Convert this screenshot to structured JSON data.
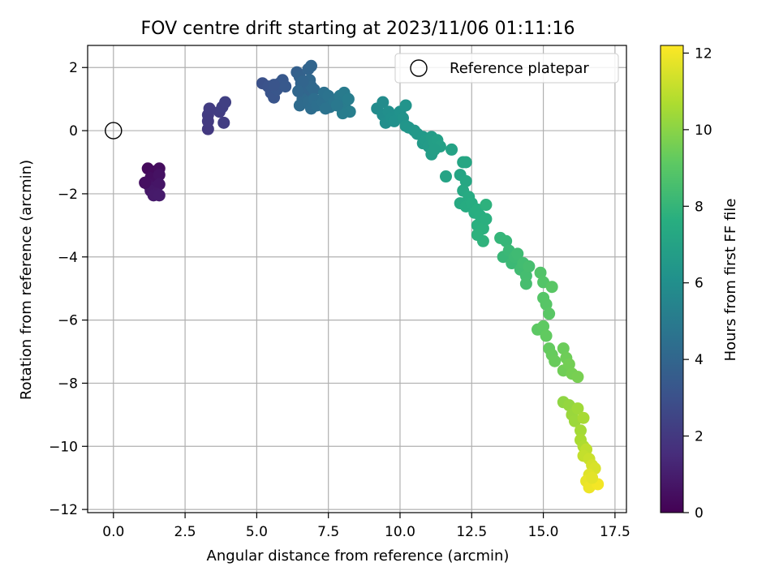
{
  "chart_data": {
    "type": "scatter",
    "title": "FOV centre drift starting at 2023/11/06 01:11:16",
    "xlabel": "Angular distance from reference (arcmin)",
    "ylabel": "Rotation from reference (arcmin)",
    "xlim": [
      -0.9,
      17.9
    ],
    "ylim": [
      -12.1,
      2.7
    ],
    "xticks": [
      0.0,
      2.5,
      5.0,
      7.5,
      10.0,
      12.5,
      15.0,
      17.5
    ],
    "xtick_labels": [
      "0.0",
      "2.5",
      "5.0",
      "7.5",
      "10.0",
      "12.5",
      "15.0",
      "17.5"
    ],
    "yticks": [
      2,
      0,
      -2,
      -4,
      -6,
      -8,
      -10,
      -12
    ],
    "ytick_labels": [
      "2",
      "0",
      "−2",
      "−4",
      "−6",
      "−8",
      "−10",
      "−12"
    ],
    "grid": true,
    "legend": {
      "position": "top-right",
      "entries": [
        "Reference platepar"
      ]
    },
    "reference_point": {
      "x": 0.0,
      "y": 0.0,
      "label": "Reference platepar"
    },
    "colorbar": {
      "label": "Hours from first FF file",
      "colormap": "viridis",
      "range": [
        0,
        12.2
      ],
      "ticks": [
        0,
        2,
        4,
        6,
        8,
        10,
        12
      ],
      "tick_labels": [
        "0",
        "2",
        "4",
        "6",
        "8",
        "10",
        "12"
      ]
    },
    "points": [
      {
        "x": 1.2,
        "y": -1.2,
        "h": 0.3
      },
      {
        "x": 1.4,
        "y": -1.3,
        "h": 0.35
      },
      {
        "x": 1.6,
        "y": -1.2,
        "h": 0.4
      },
      {
        "x": 1.3,
        "y": -1.5,
        "h": 0.45
      },
      {
        "x": 1.5,
        "y": -1.6,
        "h": 0.5
      },
      {
        "x": 1.2,
        "y": -1.7,
        "h": 0.55
      },
      {
        "x": 1.6,
        "y": -1.4,
        "h": 0.6
      },
      {
        "x": 1.4,
        "y": -1.8,
        "h": 0.65
      },
      {
        "x": 1.6,
        "y": -1.7,
        "h": 0.7
      },
      {
        "x": 1.3,
        "y": -1.9,
        "h": 0.75
      },
      {
        "x": 1.5,
        "y": -2.0,
        "h": 0.8
      },
      {
        "x": 1.4,
        "y": -2.05,
        "h": 0.85
      },
      {
        "x": 1.6,
        "y": -2.05,
        "h": 0.9
      },
      {
        "x": 1.1,
        "y": -1.65,
        "h": 0.5
      },
      {
        "x": 3.3,
        "y": 0.05,
        "h": 2.0
      },
      {
        "x": 3.3,
        "y": 0.3,
        "h": 2.05
      },
      {
        "x": 3.3,
        "y": 0.5,
        "h": 2.1
      },
      {
        "x": 3.35,
        "y": 0.7,
        "h": 2.15
      },
      {
        "x": 3.7,
        "y": 0.6,
        "h": 2.2
      },
      {
        "x": 3.8,
        "y": 0.75,
        "h": 2.25
      },
      {
        "x": 3.9,
        "y": 0.9,
        "h": 2.3
      },
      {
        "x": 3.85,
        "y": 0.25,
        "h": 2.2
      },
      {
        "x": 5.2,
        "y": 1.5,
        "h": 3.0
      },
      {
        "x": 5.4,
        "y": 1.4,
        "h": 3.1
      },
      {
        "x": 5.5,
        "y": 1.2,
        "h": 3.15
      },
      {
        "x": 5.6,
        "y": 1.05,
        "h": 3.2
      },
      {
        "x": 5.7,
        "y": 1.3,
        "h": 3.25
      },
      {
        "x": 5.8,
        "y": 1.5,
        "h": 3.3
      },
      {
        "x": 5.9,
        "y": 1.6,
        "h": 3.35
      },
      {
        "x": 6.0,
        "y": 1.4,
        "h": 3.4
      },
      {
        "x": 5.6,
        "y": 1.45,
        "h": 3.2
      },
      {
        "x": 6.4,
        "y": 1.85,
        "h": 3.7
      },
      {
        "x": 6.5,
        "y": 1.7,
        "h": 3.8
      },
      {
        "x": 6.55,
        "y": 1.5,
        "h": 3.85
      },
      {
        "x": 6.6,
        "y": 1.3,
        "h": 3.9
      },
      {
        "x": 6.7,
        "y": 1.2,
        "h": 4.0
      },
      {
        "x": 6.8,
        "y": 1.95,
        "h": 3.9
      },
      {
        "x": 6.9,
        "y": 2.05,
        "h": 3.95
      },
      {
        "x": 6.85,
        "y": 1.6,
        "h": 4.05
      },
      {
        "x": 6.9,
        "y": 1.4,
        "h": 4.1
      },
      {
        "x": 7.0,
        "y": 1.3,
        "h": 4.15
      },
      {
        "x": 6.6,
        "y": 1.0,
        "h": 4.2
      },
      {
        "x": 6.5,
        "y": 0.8,
        "h": 4.25
      },
      {
        "x": 6.8,
        "y": 0.9,
        "h": 4.3
      },
      {
        "x": 6.9,
        "y": 0.7,
        "h": 4.35
      },
      {
        "x": 7.0,
        "y": 1.0,
        "h": 4.4
      },
      {
        "x": 7.1,
        "y": 0.8,
        "h": 4.45
      },
      {
        "x": 7.3,
        "y": 0.9,
        "h": 4.5
      },
      {
        "x": 7.35,
        "y": 1.2,
        "h": 4.55
      },
      {
        "x": 7.5,
        "y": 1.1,
        "h": 4.6
      },
      {
        "x": 7.55,
        "y": 0.75,
        "h": 4.65
      },
      {
        "x": 7.7,
        "y": 0.9,
        "h": 4.7
      },
      {
        "x": 7.4,
        "y": 0.7,
        "h": 4.6
      },
      {
        "x": 6.6,
        "y": 1.55,
        "h": 3.95
      },
      {
        "x": 6.45,
        "y": 1.25,
        "h": 4.05
      },
      {
        "x": 7.9,
        "y": 1.1,
        "h": 4.9
      },
      {
        "x": 8.0,
        "y": 0.9,
        "h": 4.95
      },
      {
        "x": 8.05,
        "y": 1.2,
        "h": 5.0
      },
      {
        "x": 8.1,
        "y": 0.7,
        "h": 5.05
      },
      {
        "x": 8.2,
        "y": 1.0,
        "h": 5.1
      },
      {
        "x": 8.25,
        "y": 0.6,
        "h": 5.15
      },
      {
        "x": 8.0,
        "y": 0.55,
        "h": 5.1
      },
      {
        "x": 7.8,
        "y": 0.8,
        "h": 4.85
      },
      {
        "x": 9.2,
        "y": 0.7,
        "h": 5.8
      },
      {
        "x": 9.4,
        "y": 0.9,
        "h": 5.85
      },
      {
        "x": 9.4,
        "y": 0.5,
        "h": 5.9
      },
      {
        "x": 9.5,
        "y": 0.25,
        "h": 5.95
      },
      {
        "x": 9.6,
        "y": 0.6,
        "h": 6.0
      },
      {
        "x": 9.7,
        "y": 0.4,
        "h": 6.05
      },
      {
        "x": 9.8,
        "y": 0.3,
        "h": 6.1
      },
      {
        "x": 10.0,
        "y": 0.6,
        "h": 6.15
      },
      {
        "x": 10.1,
        "y": 0.4,
        "h": 6.2
      },
      {
        "x": 10.2,
        "y": 0.8,
        "h": 6.25
      },
      {
        "x": 10.2,
        "y": 0.15,
        "h": 6.3
      },
      {
        "x": 10.3,
        "y": 0.1,
        "h": 6.35
      },
      {
        "x": 10.5,
        "y": 0.0,
        "h": 6.4
      },
      {
        "x": 10.6,
        "y": -0.1,
        "h": 6.45
      },
      {
        "x": 10.8,
        "y": -0.2,
        "h": 6.5
      },
      {
        "x": 10.8,
        "y": -0.4,
        "h": 6.55
      },
      {
        "x": 10.9,
        "y": -0.3,
        "h": 6.6
      },
      {
        "x": 11.0,
        "y": -0.5,
        "h": 6.65
      },
      {
        "x": 11.1,
        "y": -0.2,
        "h": 6.7
      },
      {
        "x": 11.1,
        "y": -0.75,
        "h": 6.75
      },
      {
        "x": 11.2,
        "y": -0.4,
        "h": 6.8
      },
      {
        "x": 11.3,
        "y": -0.3,
        "h": 6.85
      },
      {
        "x": 11.4,
        "y": -0.5,
        "h": 6.9
      },
      {
        "x": 11.2,
        "y": -0.6,
        "h": 6.8
      },
      {
        "x": 11.8,
        "y": -0.6,
        "h": 7.0
      },
      {
        "x": 11.6,
        "y": -1.45,
        "h": 7.05
      },
      {
        "x": 12.1,
        "y": -1.4,
        "h": 7.1
      },
      {
        "x": 12.2,
        "y": -1.0,
        "h": 7.15
      },
      {
        "x": 12.3,
        "y": -1.0,
        "h": 7.2
      },
      {
        "x": 12.3,
        "y": -1.6,
        "h": 7.25
      },
      {
        "x": 12.2,
        "y": -1.9,
        "h": 7.3
      },
      {
        "x": 12.1,
        "y": -2.3,
        "h": 7.35
      },
      {
        "x": 12.4,
        "y": -2.1,
        "h": 7.4
      },
      {
        "x": 12.3,
        "y": -2.4,
        "h": 7.45
      },
      {
        "x": 12.5,
        "y": -2.3,
        "h": 7.5
      },
      {
        "x": 12.6,
        "y": -2.6,
        "h": 7.55
      },
      {
        "x": 12.7,
        "y": -2.5,
        "h": 7.6
      },
      {
        "x": 12.8,
        "y": -2.7,
        "h": 7.65
      },
      {
        "x": 12.7,
        "y": -3.0,
        "h": 7.7
      },
      {
        "x": 12.9,
        "y": -3.1,
        "h": 7.75
      },
      {
        "x": 13.0,
        "y": -2.35,
        "h": 7.8
      },
      {
        "x": 12.9,
        "y": -3.5,
        "h": 7.85
      },
      {
        "x": 12.7,
        "y": -3.3,
        "h": 7.8
      },
      {
        "x": 13.0,
        "y": -2.8,
        "h": 7.7
      },
      {
        "x": 13.5,
        "y": -3.4,
        "h": 8.0
      },
      {
        "x": 13.7,
        "y": -3.5,
        "h": 8.05
      },
      {
        "x": 13.6,
        "y": -4.0,
        "h": 8.1
      },
      {
        "x": 13.8,
        "y": -3.8,
        "h": 8.15
      },
      {
        "x": 13.9,
        "y": -4.2,
        "h": 8.2
      },
      {
        "x": 14.0,
        "y": -4.0,
        "h": 8.25
      },
      {
        "x": 14.1,
        "y": -3.9,
        "h": 8.3
      },
      {
        "x": 14.2,
        "y": -4.4,
        "h": 8.35
      },
      {
        "x": 14.3,
        "y": -4.2,
        "h": 8.4
      },
      {
        "x": 14.4,
        "y": -4.6,
        "h": 8.45
      },
      {
        "x": 14.4,
        "y": -4.85,
        "h": 8.5
      },
      {
        "x": 14.5,
        "y": -4.3,
        "h": 8.5
      },
      {
        "x": 14.9,
        "y": -4.5,
        "h": 8.8
      },
      {
        "x": 15.0,
        "y": -4.8,
        "h": 8.85
      },
      {
        "x": 15.0,
        "y": -5.3,
        "h": 8.9
      },
      {
        "x": 15.1,
        "y": -5.5,
        "h": 8.95
      },
      {
        "x": 15.2,
        "y": -5.8,
        "h": 9.0
      },
      {
        "x": 15.3,
        "y": -4.95,
        "h": 9.0
      },
      {
        "x": 14.8,
        "y": -6.3,
        "h": 9.1
      },
      {
        "x": 15.0,
        "y": -6.2,
        "h": 9.15
      },
      {
        "x": 15.1,
        "y": -6.5,
        "h": 9.2
      },
      {
        "x": 15.2,
        "y": -6.9,
        "h": 9.25
      },
      {
        "x": 15.3,
        "y": -7.1,
        "h": 9.3
      },
      {
        "x": 15.4,
        "y": -7.3,
        "h": 9.35
      },
      {
        "x": 15.7,
        "y": -6.9,
        "h": 9.4
      },
      {
        "x": 15.8,
        "y": -7.2,
        "h": 9.45
      },
      {
        "x": 15.7,
        "y": -7.6,
        "h": 9.5
      },
      {
        "x": 15.9,
        "y": -7.4,
        "h": 9.55
      },
      {
        "x": 16.0,
        "y": -7.7,
        "h": 9.6
      },
      {
        "x": 16.2,
        "y": -7.8,
        "h": 9.65
      },
      {
        "x": 15.7,
        "y": -8.6,
        "h": 10.1
      },
      {
        "x": 15.9,
        "y": -8.7,
        "h": 10.2
      },
      {
        "x": 16.0,
        "y": -9.0,
        "h": 10.3
      },
      {
        "x": 16.1,
        "y": -9.2,
        "h": 10.35
      },
      {
        "x": 16.2,
        "y": -8.8,
        "h": 10.4
      },
      {
        "x": 16.3,
        "y": -9.5,
        "h": 10.5
      },
      {
        "x": 16.4,
        "y": -9.1,
        "h": 10.55
      },
      {
        "x": 16.3,
        "y": -9.8,
        "h": 10.6
      },
      {
        "x": 16.4,
        "y": -10.0,
        "h": 10.7
      },
      {
        "x": 16.5,
        "y": -10.1,
        "h": 11.0
      },
      {
        "x": 16.4,
        "y": -10.3,
        "h": 11.1
      },
      {
        "x": 16.6,
        "y": -10.4,
        "h": 11.2
      },
      {
        "x": 16.7,
        "y": -10.6,
        "h": 11.4
      },
      {
        "x": 16.8,
        "y": -10.7,
        "h": 11.5
      },
      {
        "x": 16.6,
        "y": -10.9,
        "h": 11.6
      },
      {
        "x": 16.5,
        "y": -11.1,
        "h": 11.8
      },
      {
        "x": 16.6,
        "y": -11.3,
        "h": 11.9
      },
      {
        "x": 16.9,
        "y": -11.2,
        "h": 12.0
      },
      {
        "x": 16.7,
        "y": -11.0,
        "h": 11.7
      }
    ]
  }
}
